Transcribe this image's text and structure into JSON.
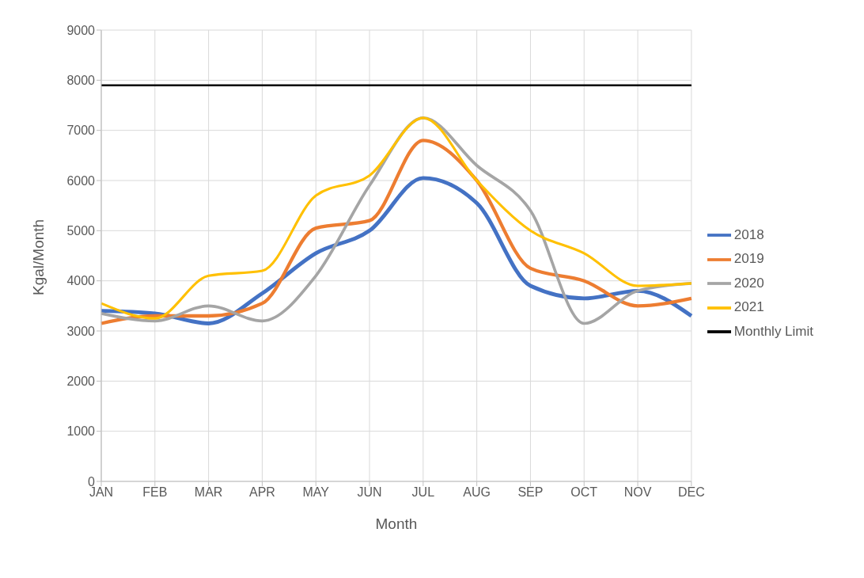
{
  "chart_data": {
    "type": "line",
    "xlabel": "Month",
    "ylabel": "Kgal/Month",
    "categories": [
      "JAN",
      "FEB",
      "MAR",
      "APR",
      "MAY",
      "JUN",
      "JUL",
      "AUG",
      "SEP",
      "OCT",
      "NOV",
      "DEC"
    ],
    "series": [
      {
        "name": "2018",
        "color": "#4472c4",
        "values": [
          3400,
          3350,
          3150,
          3750,
          4550,
          5000,
          6050,
          5550,
          3900,
          3650,
          3800,
          3300
        ]
      },
      {
        "name": "2019",
        "color": "#ed7d31",
        "values": [
          3150,
          3300,
          3300,
          3550,
          5050,
          5200,
          6800,
          6000,
          4250,
          4000,
          3500,
          3650
        ]
      },
      {
        "name": "2020",
        "color": "#a5a5a5",
        "values": [
          3350,
          3200,
          3500,
          3200,
          4100,
          5900,
          7250,
          6300,
          5400,
          3150,
          3800,
          3950
        ]
      },
      {
        "name": "2021",
        "color": "#ffc000",
        "values": [
          3550,
          3250,
          4100,
          4200,
          5700,
          6100,
          7250,
          6000,
          5000,
          4550,
          3900,
          3950
        ]
      },
      {
        "name": "Monthly Limit",
        "color": "#000000",
        "values": [
          7900,
          7900,
          7900,
          7900,
          7900,
          7900,
          7900,
          7900,
          7900,
          7900,
          7900,
          7900
        ]
      }
    ],
    "ylim": [
      0,
      9000
    ],
    "yticks": [
      0,
      1000,
      2000,
      3000,
      4000,
      5000,
      6000,
      7000,
      8000,
      9000
    ],
    "grid": true,
    "legend": "right",
    "marker": "none",
    "line_style": "solid"
  }
}
